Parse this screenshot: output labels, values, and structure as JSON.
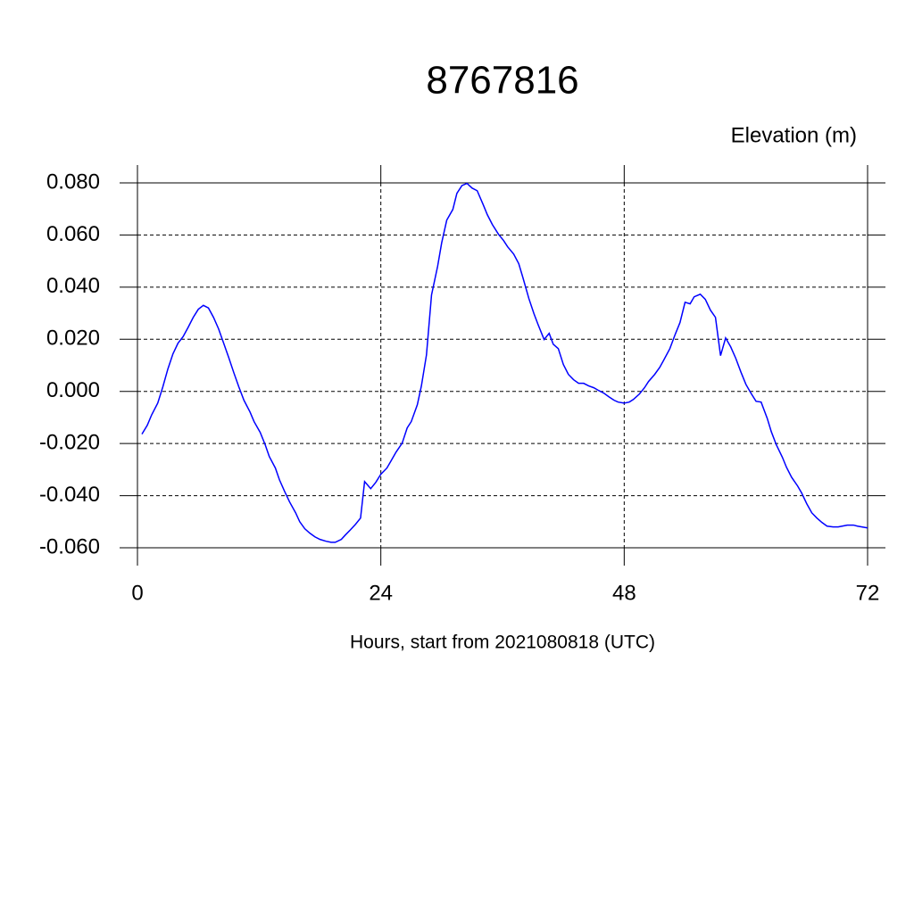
{
  "chart_data": {
    "type": "line",
    "title": "8767816",
    "subtitle": "Elevation (m)",
    "x_label": "Hours, start from 2021080818 (UTC)",
    "xlim": [
      0,
      72
    ],
    "xticks": [
      0,
      24,
      48,
      72
    ],
    "ylim": [
      -0.06,
      0.08
    ],
    "yticks": [
      {
        "value": -0.06,
        "label": "-0.060"
      },
      {
        "value": -0.04,
        "label": "-0.040"
      },
      {
        "value": -0.02,
        "label": "-0.020"
      },
      {
        "value": 0,
        "label": "0.000"
      },
      {
        "value": 0.02,
        "label": "0.020"
      },
      {
        "value": 0.04,
        "label": "0.040"
      },
      {
        "value": 0.06,
        "label": "0.060"
      },
      {
        "value": 0.08,
        "label": "0.080"
      }
    ],
    "grid": true,
    "x": [
      0.44,
      0.97,
      1.4,
      2.0,
      2.5,
      3.0,
      3.5,
      4.0,
      4.5,
      5.0,
      5.5,
      6.0,
      6.5,
      7.0,
      7.5,
      8.0,
      8.5,
      9.0,
      9.5,
      10.0,
      10.5,
      11.1,
      11.5,
      12.1,
      12.6,
      13.0,
      13.6,
      14.0,
      14.5,
      15.0,
      15.6,
      16.0,
      16.5,
      17.0,
      17.5,
      18.0,
      18.6,
      19.1,
      19.5,
      20.1,
      20.5,
      21.0,
      21.5,
      22.0,
      22.4,
      23.0,
      23.5,
      24.0,
      24.6,
      25.0,
      25.5,
      26.1,
      26.6,
      27.0,
      27.6,
      28.0,
      28.5,
      29.0,
      29.6,
      30.0,
      30.5,
      31.1,
      31.5,
      32.0,
      32.5,
      33.0,
      33.5,
      34.1,
      34.5,
      35.0,
      35.6,
      36.1,
      36.5,
      37.1,
      37.6,
      38.0,
      38.6,
      39.1,
      39.5,
      40.1,
      40.6,
      41.0,
      41.5,
      42.0,
      42.5,
      43.0,
      43.5,
      44.0,
      44.5,
      45.0,
      45.5,
      46.0,
      46.5,
      47.0,
      47.4,
      48.0,
      48.5,
      48.9,
      49.5,
      50.0,
      50.4,
      51.0,
      51.5,
      51.9,
      52.5,
      53.0,
      53.5,
      54.0,
      54.5,
      54.9,
      55.5,
      56.0,
      56.5,
      57.0,
      57.5,
      58.0,
      58.5,
      59.0,
      59.5,
      60.0,
      60.5,
      61.0,
      61.5,
      62.1,
      62.5,
      63.0,
      63.6,
      64.0,
      64.5,
      65.1,
      65.5,
      66.0,
      66.5,
      67.0,
      67.5,
      68.0,
      68.6,
      69.1,
      69.5,
      70.0,
      70.6,
      71.0,
      72.0
    ],
    "series": [
      {
        "color": "#0000ff",
        "values": [
          -0.0164,
          -0.013,
          -0.009,
          -0.0045,
          0.0017,
          0.0086,
          0.0144,
          0.0185,
          0.021,
          0.0246,
          0.0284,
          0.0315,
          0.033,
          0.032,
          0.0284,
          0.024,
          0.0185,
          0.013,
          0.0072,
          0.0017,
          -0.0034,
          -0.0079,
          -0.0116,
          -0.0157,
          -0.0205,
          -0.025,
          -0.0294,
          -0.0339,
          -0.0383,
          -0.0424,
          -0.0466,
          -0.05,
          -0.0527,
          -0.0544,
          -0.0558,
          -0.0568,
          -0.0575,
          -0.0579,
          -0.0579,
          -0.0568,
          -0.0551,
          -0.0531,
          -0.051,
          -0.0486,
          -0.0346,
          -0.0373,
          -0.0349,
          -0.0318,
          -0.0294,
          -0.0267,
          -0.0233,
          -0.0199,
          -0.014,
          -0.0116,
          -0.0051,
          0.0021,
          0.014,
          0.037,
          0.048,
          0.057,
          0.0657,
          0.0698,
          0.076,
          0.079,
          0.0798,
          0.078,
          0.077,
          0.0716,
          0.0678,
          0.064,
          0.0603,
          0.0579,
          0.0555,
          0.0527,
          0.049,
          0.0438,
          0.0356,
          0.0298,
          0.0257,
          0.0199,
          0.0223,
          0.0181,
          0.0164,
          0.0103,
          0.0065,
          0.0045,
          0.0031,
          0.0031,
          0.0021,
          0.0014,
          0.0003,
          -0.0007,
          -0.0021,
          -0.0034,
          -0.0041,
          -0.0045,
          -0.0041,
          -0.0031,
          -0.001,
          0.0014,
          0.0038,
          0.0065,
          0.0092,
          0.012,
          0.0164,
          0.0216,
          0.0264,
          0.0342,
          0.0336,
          0.0363,
          0.0373,
          0.0353,
          0.0312,
          0.0284,
          0.0137,
          0.0205,
          0.0171,
          0.0127,
          0.0075,
          0.0027,
          -0.0007,
          -0.0038,
          -0.0041,
          -0.0103,
          -0.0154,
          -0.0205,
          -0.0253,
          -0.0291,
          -0.0329,
          -0.0363,
          -0.039,
          -0.0431,
          -0.0466,
          -0.0486,
          -0.0503,
          -0.0517,
          -0.052,
          -0.052,
          -0.0517,
          -0.0513,
          -0.0513,
          -0.0517,
          -0.0524
        ]
      }
    ]
  }
}
